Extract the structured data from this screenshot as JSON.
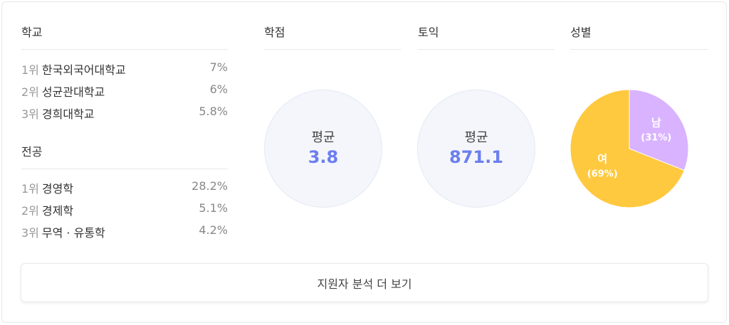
{
  "school": {
    "title": "학교",
    "items": [
      {
        "rank": "1위",
        "name": "한국외국어대학교",
        "pct": "7%"
      },
      {
        "rank": "2위",
        "name": "성균관대학교",
        "pct": "6%"
      },
      {
        "rank": "3위",
        "name": "경희대학교",
        "pct": "5.8%"
      }
    ]
  },
  "major": {
    "title": "전공",
    "items": [
      {
        "rank": "1위",
        "name": "경영학",
        "pct": "28.2%"
      },
      {
        "rank": "2위",
        "name": "경제학",
        "pct": "5.1%"
      },
      {
        "rank": "3위",
        "name": "무역 · 유통학",
        "pct": "4.2%"
      }
    ]
  },
  "gpa": {
    "title": "학점",
    "label": "평균",
    "value": "3.8"
  },
  "toeic": {
    "title": "토익",
    "label": "평균",
    "value": "871.1"
  },
  "gender": {
    "title": "성별",
    "slices": [
      {
        "label": "남",
        "pct_text": "(31%)",
        "value": 31,
        "color": "#d9b3ff"
      },
      {
        "label": "여",
        "pct_text": "(69%)",
        "value": 69,
        "color": "#ffc93f"
      }
    ]
  },
  "more_button": "지원자 분석 더 보기"
}
